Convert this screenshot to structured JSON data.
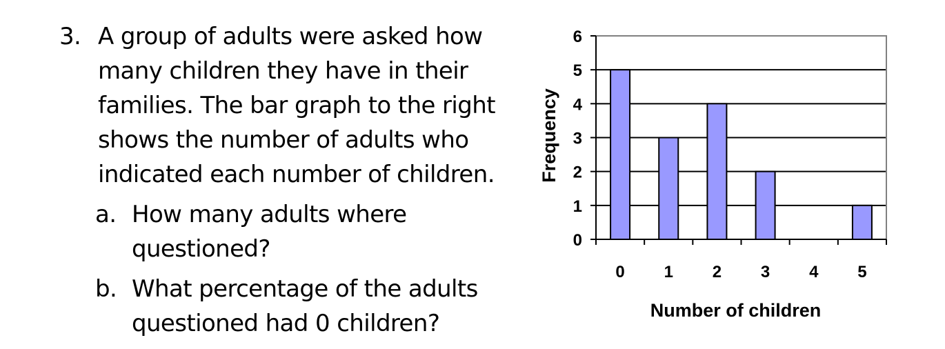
{
  "question": {
    "number": "3.",
    "lines": [
      "A group of adults were asked how",
      "many children they have in their",
      "families. The bar graph to the right",
      "shows the number of adults who",
      "indicated each number of children."
    ],
    "parts": [
      {
        "letter": "a.",
        "lines": [
          "How many adults where",
          "questioned?"
        ]
      },
      {
        "letter": "b.",
        "lines": [
          "What percentage of the adults",
          "questioned had 0 children?"
        ]
      }
    ]
  },
  "chart_data": {
    "type": "bar",
    "categories": [
      "0",
      "1",
      "2",
      "3",
      "4",
      "5"
    ],
    "values": [
      5,
      3,
      4,
      2,
      0,
      1
    ],
    "title": "",
    "xlabel": "Number of children",
    "ylabel": "Frequency",
    "ylim": [
      0,
      6
    ],
    "yticks": [
      "0",
      "1",
      "2",
      "3",
      "4",
      "5",
      "6"
    ],
    "grid": true,
    "legend": "none",
    "bar_color": "#9999ff"
  }
}
